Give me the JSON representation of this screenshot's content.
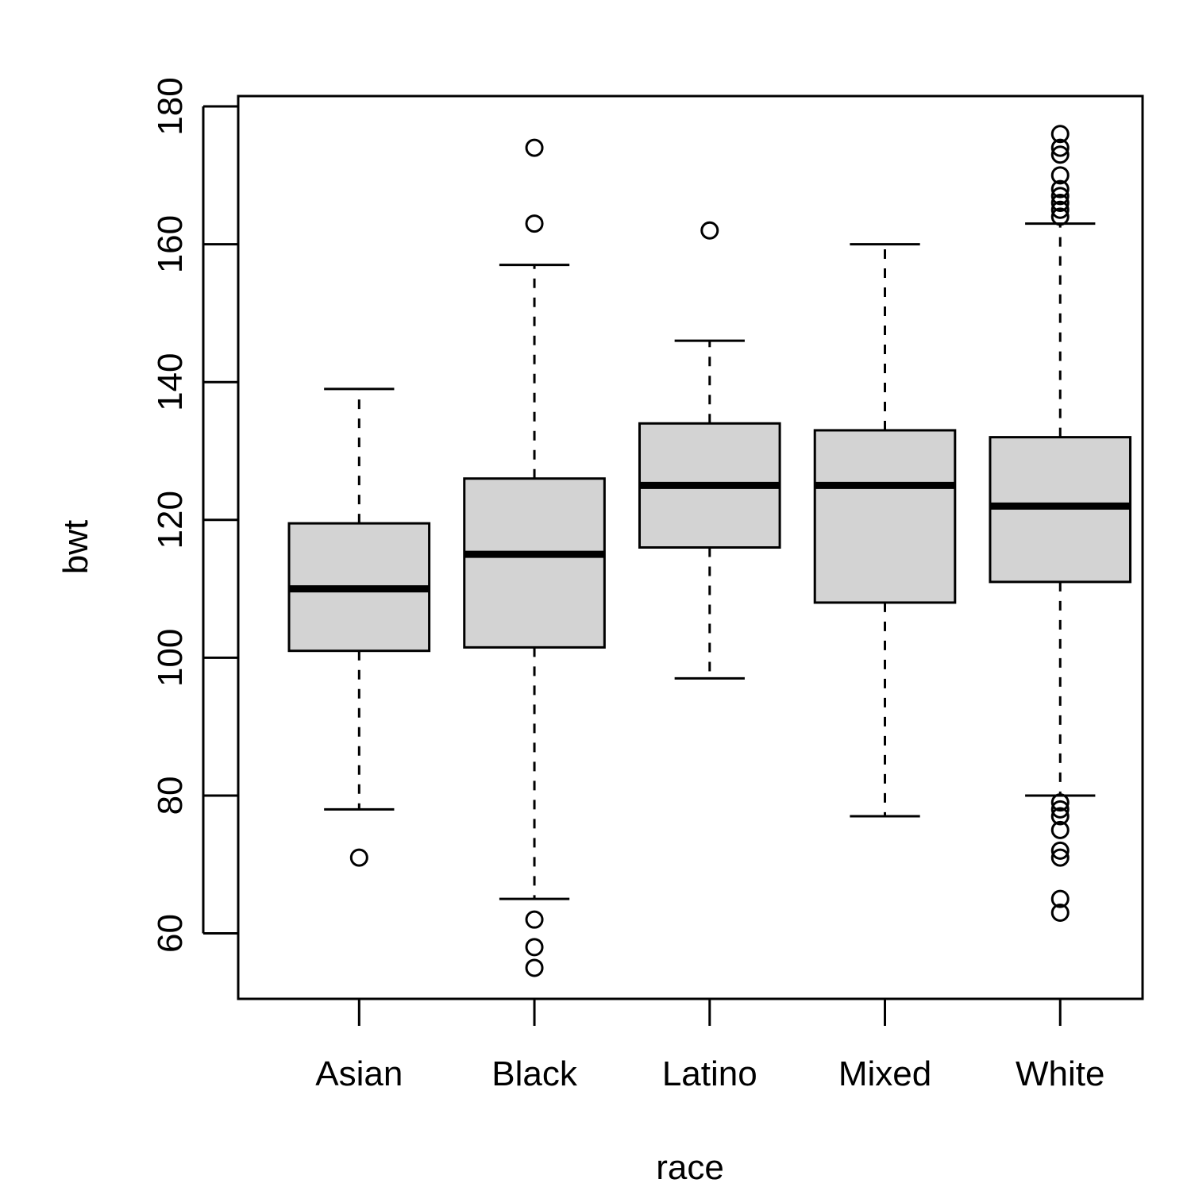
{
  "chart_data": {
    "type": "boxplot",
    "title": "",
    "xlabel": "race",
    "ylabel": "bwt",
    "ylim": [
      50.5,
      181.5
    ],
    "yticks": [
      60,
      80,
      100,
      120,
      140,
      160,
      180
    ],
    "grid": false,
    "box_fill": "#d3d3d3",
    "categories": [
      "Asian",
      "Black",
      "Latino",
      "Mixed",
      "White"
    ],
    "boxes": [
      {
        "category": "Asian",
        "whisker_low": 78,
        "q1": 101,
        "median": 110,
        "q3": 119.5,
        "whisker_high": 139,
        "outliers": [
          71
        ]
      },
      {
        "category": "Black",
        "whisker_low": 65,
        "q1": 101.5,
        "median": 115,
        "q3": 126,
        "whisker_high": 157,
        "outliers": [
          55,
          58,
          62,
          163,
          174
        ]
      },
      {
        "category": "Latino",
        "whisker_low": 97,
        "q1": 116,
        "median": 125,
        "q3": 134,
        "whisker_high": 146,
        "outliers": [
          162
        ]
      },
      {
        "category": "Mixed",
        "whisker_low": 77,
        "q1": 108,
        "median": 125,
        "q3": 133,
        "whisker_high": 160,
        "outliers": []
      },
      {
        "category": "White",
        "whisker_low": 80,
        "q1": 111,
        "median": 122,
        "q3": 132,
        "whisker_high": 163,
        "outliers": [
          63,
          65,
          71,
          72,
          75,
          77,
          78,
          79,
          164,
          165,
          166,
          167,
          168,
          170,
          173,
          174,
          176
        ]
      }
    ]
  }
}
